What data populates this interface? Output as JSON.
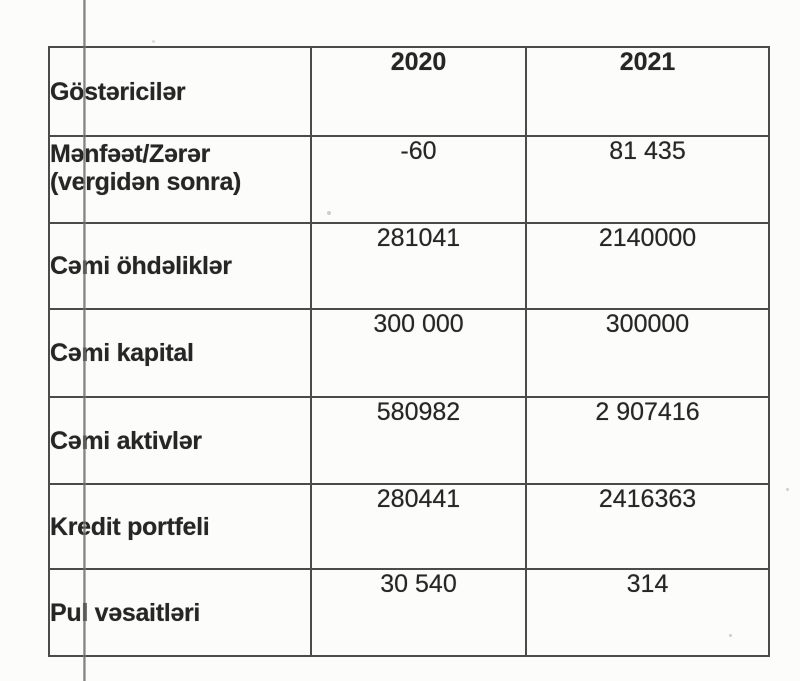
{
  "table": {
    "header": {
      "indicator": "Göstəricilər",
      "year_2020": "2020",
      "year_2021": "2021"
    },
    "rows": [
      {
        "label": "Mənfəət/Zərər (vergidən sonra)",
        "y2020": "-60",
        "y2021": "81 435"
      },
      {
        "label": "Cəmi öhdəliklər",
        "y2020": "281041",
        "y2021": "2140000"
      },
      {
        "label": "Cəmi kapital",
        "y2020": "300 000",
        "y2021": "300000"
      },
      {
        "label": "Cəmi aktivlər",
        "y2020": "580982",
        "y2021": "2 907416"
      },
      {
        "label": "Kredit portfeli",
        "y2020": "280441",
        "y2021": "2416363"
      },
      {
        "label": "Pul vəsaitləri",
        "y2020": "30 540",
        "y2021": "314"
      }
    ]
  },
  "colors": {
    "ink": "#262626",
    "table_border": "#4b4b4b",
    "margin_line": "#5f5f5f",
    "page_background": "#fcfcfa"
  }
}
